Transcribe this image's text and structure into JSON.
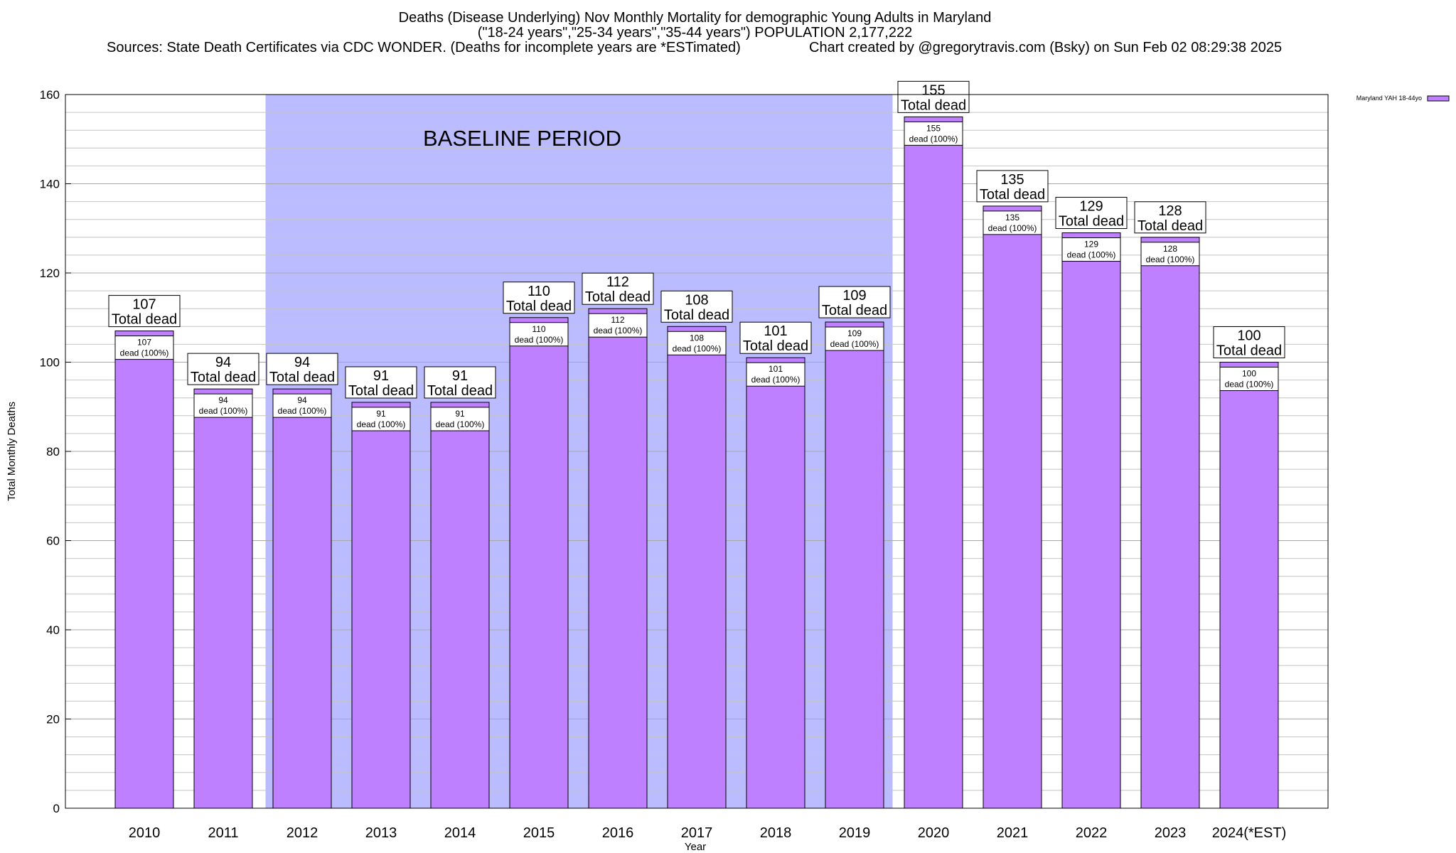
{
  "header": {
    "title_line1": "Deaths (Disease Underlying) Nov Monthly Mortality for demographic Young Adults in Maryland",
    "title_line2": "(\"18-24 years\",\"25-34 years\",\"35-44 years\") POPULATION 2,177,222",
    "sources": "Sources: State Death Certificates via CDC WONDER. (Deaths for incomplete years are *ESTimated)",
    "credit": "Chart created by @gregorytravis.com (Bsky) on Sun Feb 02 08:29:38 2025"
  },
  "chart_data": {
    "type": "bar",
    "xlabel": "Year",
    "ylabel": "Total Monthly Deaths",
    "ylim": [
      0,
      160
    ],
    "ytick_step": 20,
    "yminor_step": 4,
    "categories": [
      "2010",
      "2011",
      "2012",
      "2013",
      "2014",
      "2015",
      "2016",
      "2017",
      "2018",
      "2019",
      "2020",
      "2021",
      "2022",
      "2023",
      "2024(*EST)"
    ],
    "series": [
      {
        "name": "Maryland YAH 18-44yo",
        "values": [
          107,
          94,
          94,
          91,
          91,
          110,
          112,
          108,
          101,
          109,
          155,
          135,
          129,
          128,
          100
        ],
        "color": "#bf80ff"
      }
    ],
    "total_label_suffix": "Total dead",
    "inner_label_suffix": "dead (100%)",
    "baseline": {
      "label": "BASELINE PERIOD",
      "from": "2012",
      "to": "2019",
      "color": "#bbbbff"
    },
    "grid": true,
    "legend_position": "top-right"
  }
}
